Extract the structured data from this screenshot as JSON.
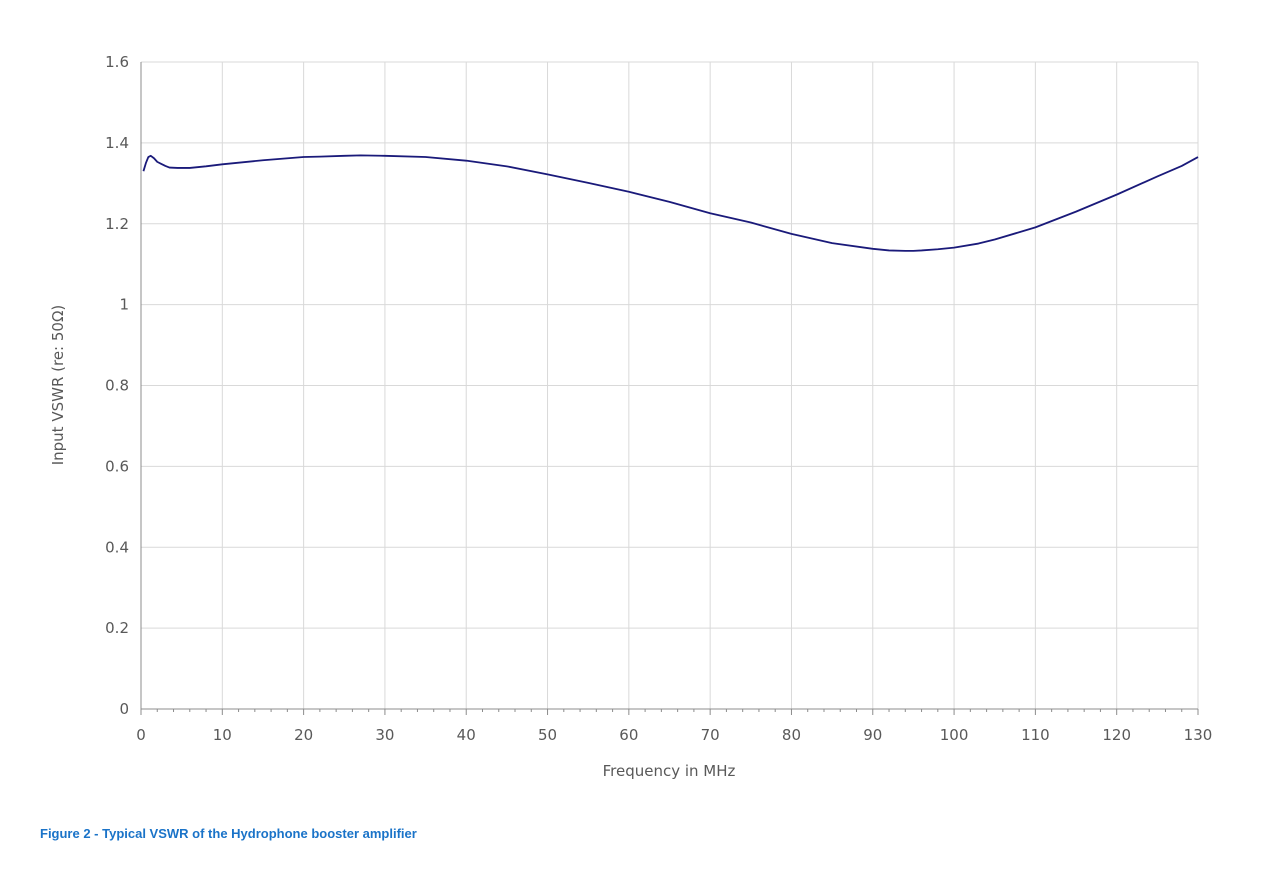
{
  "caption": "Figure 2 - Typical VSWR of the Hydrophone booster amplifier",
  "colors": {
    "line": "#1a1a7a",
    "grid": "#d9d9d9",
    "axis": "#8c8c8c",
    "caption": "#1a73c8"
  },
  "chart_data": {
    "type": "line",
    "title": "",
    "xlabel": "Frequency in MHz",
    "ylabel": "Input VSWR (re: 50Ω)",
    "xlim": [
      0,
      130
    ],
    "ylim": [
      0,
      1.6
    ],
    "grid": true,
    "x_ticks": [
      0,
      10,
      20,
      30,
      40,
      50,
      60,
      70,
      80,
      90,
      100,
      110,
      120,
      130
    ],
    "x_tick_labels": [
      "0",
      "10",
      "20",
      "30",
      "40",
      "50",
      "60",
      "70",
      "80",
      "90",
      "100",
      "110",
      "120",
      "130"
    ],
    "y_ticks": [
      0,
      0.2,
      0.4,
      0.6,
      0.8,
      1.0,
      1.2,
      1.4,
      1.6
    ],
    "y_tick_labels": [
      "0",
      "0.2",
      "0.4",
      "0.6",
      "0.8",
      "1",
      "1.2",
      "1.4",
      "1.6"
    ],
    "series": [
      {
        "x": [
          0.3,
          0.6,
          0.9,
          1.2,
          1.6,
          2.0,
          2.5,
          3.0,
          3.5,
          4.5,
          6,
          8,
          10,
          15,
          20,
          22,
          25,
          27,
          30,
          35,
          40,
          45,
          50,
          55,
          60,
          65,
          70,
          75,
          80,
          85,
          90,
          92,
          94,
          95,
          96,
          98,
          100,
          103,
          105,
          110,
          115,
          120,
          125,
          128,
          130
        ],
        "y": [
          1.33,
          1.35,
          1.365,
          1.368,
          1.362,
          1.353,
          1.348,
          1.343,
          1.339,
          1.338,
          1.338,
          1.342,
          1.347,
          1.357,
          1.365,
          1.366,
          1.368,
          1.369,
          1.368,
          1.365,
          1.356,
          1.342,
          1.322,
          1.301,
          1.279,
          1.254,
          1.226,
          1.203,
          1.175,
          1.152,
          1.138,
          1.134,
          1.133,
          1.133,
          1.134,
          1.137,
          1.141,
          1.151,
          1.161,
          1.191,
          1.23,
          1.272,
          1.317,
          1.343,
          1.365
        ]
      }
    ]
  }
}
